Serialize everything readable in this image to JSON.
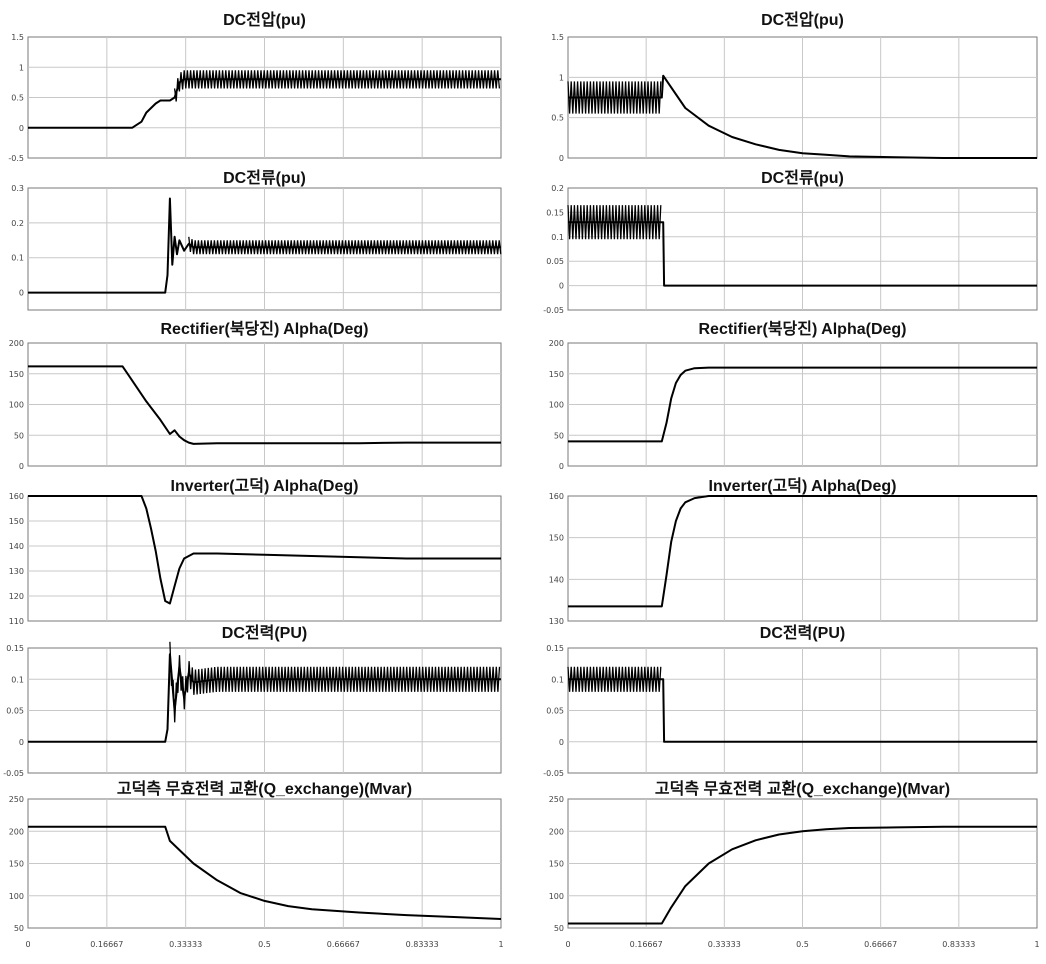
{
  "chart_data": [
    {
      "type": "line",
      "title": "DC전압(pu)",
      "x_ticks": [
        "0",
        "0.16667",
        "0.33333",
        "0.5",
        "0.66667",
        "0.83333",
        "1"
      ],
      "xlim": [
        0,
        1
      ],
      "ylim": [
        -0.5,
        1.5
      ],
      "y_ticks": [
        "-0.5",
        "0",
        "0.5",
        "1",
        "1.5"
      ],
      "grid": true,
      "x": [
        0,
        0.2,
        0.22,
        0.24,
        0.25,
        0.27,
        0.28,
        0.3,
        0.31,
        0.32,
        0.33,
        0.35,
        0.4,
        0.5,
        0.6,
        0.7,
        0.8,
        0.9,
        1.0
      ],
      "y": [
        0,
        0,
        0,
        0.1,
        0.25,
        0.4,
        0.45,
        0.45,
        0.5,
        0.75,
        0.8,
        0.8,
        0.8,
        0.8,
        0.8,
        0.8,
        0.8,
        0.8,
        0.8
      ],
      "oscillation": {
        "from": 0.31,
        "to": 1.0,
        "amplitude": 0.15
      }
    },
    {
      "type": "line",
      "title": "DC전압(pu)",
      "x_ticks": [
        "0",
        "0.16667",
        "0.33333",
        "0.5",
        "0.66667",
        "0.83333",
        "1"
      ],
      "xlim": [
        0,
        1
      ],
      "ylim": [
        0,
        1.5
      ],
      "y_ticks": [
        "0",
        "0.5",
        "1",
        "1.5"
      ],
      "grid": true,
      "x": [
        0,
        0.2,
        0.203,
        0.25,
        0.3,
        0.35,
        0.4,
        0.45,
        0.5,
        0.55,
        0.6,
        0.7,
        0.8,
        1.0
      ],
      "y": [
        0.75,
        0.75,
        1.02,
        0.62,
        0.4,
        0.26,
        0.17,
        0.1,
        0.06,
        0.04,
        0.02,
        0.01,
        0.0,
        0.0
      ],
      "oscillation": {
        "from": 0,
        "to": 0.2,
        "amplitude": 0.2
      }
    },
    {
      "type": "line",
      "title": "DC전류(pu)",
      "x_ticks": [
        "0",
        "0.16667",
        "0.33333",
        "0.5",
        "0.66667",
        "0.83333",
        "1"
      ],
      "xlim": [
        0,
        1
      ],
      "ylim": [
        -0.05,
        0.3
      ],
      "y_ticks": [
        "0",
        "0.1",
        "0.2",
        "0.3"
      ],
      "grid": true,
      "x": [
        0,
        0.29,
        0.295,
        0.3,
        0.305,
        0.31,
        0.315,
        0.32,
        0.33,
        0.34,
        0.35,
        0.4,
        0.5,
        0.6,
        0.7,
        0.8,
        0.9,
        1.0
      ],
      "y": [
        0,
        0,
        0.05,
        0.27,
        0.08,
        0.16,
        0.11,
        0.15,
        0.12,
        0.14,
        0.13,
        0.13,
        0.13,
        0.13,
        0.13,
        0.13,
        0.13,
        0.13
      ],
      "oscillation": {
        "from": 0.34,
        "to": 1.0,
        "amplitude": 0.02
      }
    },
    {
      "type": "line",
      "title": "DC전류(pu)",
      "x_ticks": [
        "0",
        "0.16667",
        "0.33333",
        "0.5",
        "0.66667",
        "0.83333",
        "1"
      ],
      "xlim": [
        0,
        1
      ],
      "ylim": [
        -0.05,
        0.2
      ],
      "y_ticks": [
        "-0.05",
        "0",
        "0.05",
        "0.1",
        "0.15",
        "0.2"
      ],
      "grid": true,
      "x": [
        0,
        0.2,
        0.203,
        0.205,
        1.0
      ],
      "y": [
        0.13,
        0.13,
        0.13,
        0,
        0
      ],
      "oscillation": {
        "from": 0,
        "to": 0.2,
        "amplitude": 0.035
      }
    },
    {
      "type": "line",
      "title": "Rectifier(북당진) Alpha(Deg)",
      "x_ticks": [
        "0",
        "0.16667",
        "0.33333",
        "0.5",
        "0.66667",
        "0.83333",
        "1"
      ],
      "xlim": [
        0,
        1
      ],
      "ylim": [
        0,
        200
      ],
      "y_ticks": [
        "0",
        "50",
        "100",
        "150",
        "200"
      ],
      "grid": true,
      "x": [
        0,
        0.2,
        0.25,
        0.28,
        0.3,
        0.31,
        0.32,
        0.33,
        0.34,
        0.35,
        0.4,
        0.5,
        0.6,
        0.7,
        0.8,
        0.9,
        1.0
      ],
      "y": [
        162,
        162,
        105,
        75,
        52,
        58,
        48,
        42,
        38,
        36,
        37,
        37,
        37,
        37,
        38,
        38,
        38
      ]
    },
    {
      "type": "line",
      "title": "Rectifier(북당진) Alpha(Deg)",
      "x_ticks": [
        "0",
        "0.16667",
        "0.33333",
        "0.5",
        "0.66667",
        "0.83333",
        "1"
      ],
      "xlim": [
        0,
        1
      ],
      "ylim": [
        0,
        200
      ],
      "y_ticks": [
        "0",
        "50",
        "100",
        "150",
        "200"
      ],
      "grid": true,
      "x": [
        0,
        0.2,
        0.21,
        0.22,
        0.23,
        0.24,
        0.25,
        0.27,
        0.3,
        0.35,
        1.0
      ],
      "y": [
        40,
        40,
        70,
        110,
        135,
        148,
        155,
        159,
        160,
        160,
        160
      ]
    },
    {
      "type": "line",
      "title": "Inverter(고덕) Alpha(Deg)",
      "x_ticks": [
        "0",
        "0.16667",
        "0.33333",
        "0.5",
        "0.66667",
        "0.83333",
        "1"
      ],
      "xlim": [
        0,
        1
      ],
      "ylim": [
        110,
        160
      ],
      "y_ticks": [
        "110",
        "120",
        "130",
        "140",
        "150",
        "160"
      ],
      "grid": true,
      "x": [
        0,
        0.24,
        0.25,
        0.26,
        0.27,
        0.28,
        0.29,
        0.3,
        0.31,
        0.32,
        0.33,
        0.35,
        0.4,
        0.5,
        0.6,
        0.7,
        0.8,
        0.9,
        1.0
      ],
      "y": [
        160,
        160,
        155,
        147,
        138,
        127,
        118,
        117,
        124,
        131,
        135,
        137,
        137,
        136.5,
        136,
        135.5,
        135,
        135,
        135
      ]
    },
    {
      "type": "line",
      "title": "Inverter(고덕) Alpha(Deg)",
      "x_ticks": [
        "0",
        "0.16667",
        "0.33333",
        "0.5",
        "0.66667",
        "0.83333",
        "1"
      ],
      "xlim": [
        0,
        1
      ],
      "ylim": [
        130,
        160
      ],
      "y_ticks": [
        "130",
        "140",
        "150",
        "160"
      ],
      "grid": true,
      "x": [
        0,
        0.2,
        0.21,
        0.22,
        0.23,
        0.24,
        0.25,
        0.27,
        0.3,
        0.35,
        1.0
      ],
      "y": [
        133.5,
        133.5,
        141,
        149,
        154,
        157,
        158.5,
        159.5,
        160,
        160,
        160
      ]
    },
    {
      "type": "line",
      "title": "DC전력(PU)",
      "x_ticks": [
        "0",
        "0.16667",
        "0.33333",
        "0.5",
        "0.66667",
        "0.83333",
        "1"
      ],
      "xlim": [
        0,
        1
      ],
      "ylim": [
        -0.05,
        0.15
      ],
      "y_ticks": [
        "-0.05",
        "0",
        "0.05",
        "0.1",
        "0.15"
      ],
      "grid": true,
      "x": [
        0,
        0.29,
        0.295,
        0.3,
        0.31,
        0.32,
        0.33,
        0.34,
        0.35,
        0.4,
        0.5,
        0.6,
        0.7,
        0.8,
        0.9,
        1.0
      ],
      "y": [
        0,
        0,
        0.02,
        0.14,
        0.05,
        0.12,
        0.07,
        0.11,
        0.095,
        0.1,
        0.1,
        0.1,
        0.1,
        0.1,
        0.1,
        0.1
      ],
      "oscillation": {
        "from": 0.3,
        "to": 1.0,
        "amplitude": 0.02
      }
    },
    {
      "type": "line",
      "title": "DC전력(PU)",
      "x_ticks": [
        "0",
        "0.16667",
        "0.33333",
        "0.5",
        "0.66667",
        "0.83333",
        "1"
      ],
      "xlim": [
        0,
        1
      ],
      "ylim": [
        -0.05,
        0.15
      ],
      "y_ticks": [
        "-0.05",
        "0",
        "0.05",
        "0.1",
        "0.15"
      ],
      "grid": true,
      "x": [
        0,
        0.2,
        0.203,
        0.205,
        1.0
      ],
      "y": [
        0.1,
        0.1,
        0.1,
        0,
        0
      ],
      "oscillation": {
        "from": 0,
        "to": 0.2,
        "amplitude": 0.02
      }
    },
    {
      "type": "line",
      "title": "고덕측 무효전력 교환(Q_exchange)(Mvar)",
      "x_ticks": [
        "0",
        "0.16667",
        "0.33333",
        "0.5",
        "0.66667",
        "0.83333",
        "1"
      ],
      "xlim": [
        0,
        1
      ],
      "ylim": [
        50,
        250
      ],
      "y_ticks": [
        "50",
        "100",
        "150",
        "200",
        "250"
      ],
      "grid": true,
      "x": [
        0,
        0.29,
        0.3,
        0.35,
        0.4,
        0.45,
        0.5,
        0.55,
        0.6,
        0.7,
        0.8,
        0.9,
        1.0
      ],
      "y": [
        207,
        207,
        185,
        150,
        124,
        104,
        92,
        84,
        79,
        74,
        70,
        67,
        64
      ]
    },
    {
      "type": "line",
      "title": "고덕측 무효전력 교환(Q_exchange)(Mvar)",
      "x_ticks": [
        "0",
        "0.16667",
        "0.33333",
        "0.5",
        "0.66667",
        "0.83333",
        "1"
      ],
      "xlim": [
        0,
        1
      ],
      "ylim": [
        50,
        250
      ],
      "y_ticks": [
        "50",
        "100",
        "150",
        "200",
        "250"
      ],
      "grid": true,
      "x": [
        0,
        0.2,
        0.22,
        0.25,
        0.3,
        0.35,
        0.4,
        0.45,
        0.5,
        0.55,
        0.6,
        0.7,
        0.8,
        1.0
      ],
      "y": [
        57,
        57,
        82,
        115,
        150,
        172,
        186,
        195,
        200,
        203,
        205,
        206,
        207,
        207
      ]
    }
  ]
}
